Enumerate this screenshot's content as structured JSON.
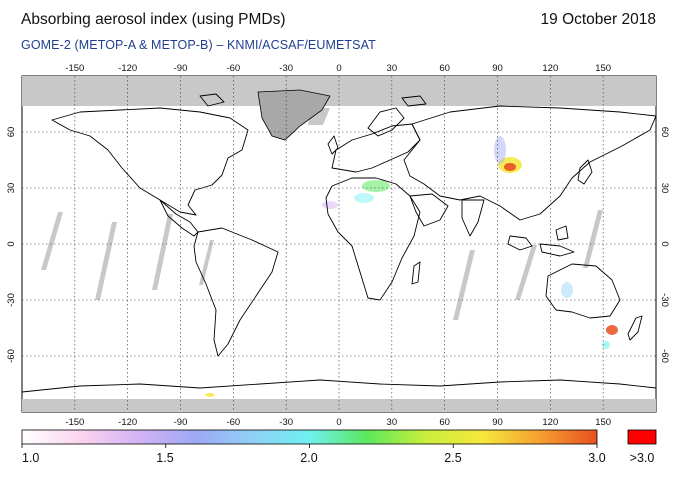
{
  "header": {
    "title": "Absorbing aerosol index (using PMDs)",
    "date": "19 October 2018",
    "subtitle": "GOME-2 (METOP-A & METOP-B)  –  KNMI/ACSAF/EUMETSAT"
  },
  "map": {
    "lon_ticks": [
      "-150",
      "-120",
      "-90",
      "-60",
      "-30",
      "0",
      "30",
      "60",
      "90",
      "120",
      "150"
    ],
    "lat_ticks": [
      "60",
      "30",
      "0",
      "-30",
      "-60"
    ],
    "lon_range": [
      -180,
      180
    ],
    "lat_range": [
      -90,
      90
    ],
    "grid": true,
    "colors": {
      "no_data": "#c8c8c8",
      "coastline": "#000000",
      "grid": "#333333"
    }
  },
  "colorbar": {
    "labels": [
      "1.0",
      "1.5",
      "2.0",
      "2.5",
      "3.0"
    ],
    "overflow_label": ">3.0",
    "range": [
      1.0,
      3.0
    ],
    "gradient": [
      "#ffffff",
      "#fbd5f0",
      "#d5b3f5",
      "#9ea8f5",
      "#8fd0f5",
      "#6ff0f0",
      "#5ce85c",
      "#c8ee3c",
      "#f5e83c",
      "#f5a030",
      "#e85020"
    ],
    "overflow_color": "#ff0000"
  }
}
